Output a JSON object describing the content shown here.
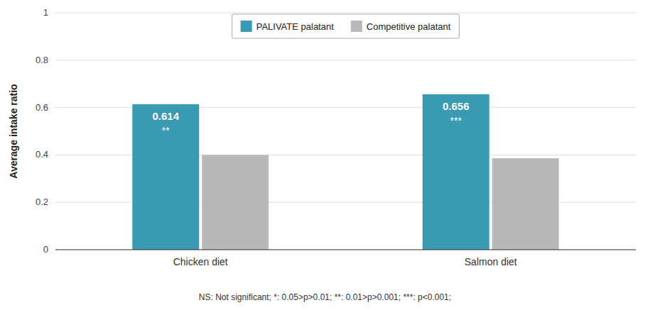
{
  "chart_data": {
    "type": "bar",
    "categories": [
      "Chicken diet",
      "Salmon diet"
    ],
    "series": [
      {
        "name": "PALIVATE palatant",
        "color": "#3a9ab2",
        "values": [
          0.614,
          0.656
        ],
        "data_labels": true,
        "annotations": [
          "**",
          "***"
        ]
      },
      {
        "name": "Competitive palatant",
        "color": "#b8b8b8",
        "values": [
          0.4,
          0.386
        ]
      }
    ],
    "ylabel": "Average intake ratio",
    "ylim": [
      0,
      1.0
    ],
    "yticks": [
      0,
      0.2,
      0.4,
      0.6,
      0.8,
      1
    ],
    "grid": true,
    "legend": "top",
    "footnote": "NS: Not significant; *: 0.05>p>0.01; **: 0.01>p>0.001;  ***: p<0.001;"
  }
}
